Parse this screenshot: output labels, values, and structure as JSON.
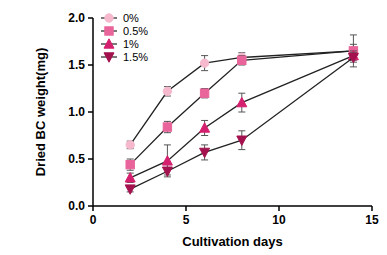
{
  "chart_data": {
    "type": "line",
    "x_label": "Cultivation days",
    "y_label": "Dried BC weight(mg)",
    "x": [
      2,
      4,
      6,
      8,
      14
    ],
    "xlim": [
      0,
      15
    ],
    "xticks": [
      0,
      5,
      10,
      15
    ],
    "ylim": [
      0,
      2
    ],
    "yticks": [
      {
        "value": 0,
        "label": "0.0"
      },
      0.5,
      {
        "value": 1,
        "label": "1.0"
      },
      1.5,
      {
        "value": 2,
        "label": "2.0"
      }
    ],
    "legend": "upper left",
    "series": [
      {
        "name": "0%",
        "color": "#f5b8cc",
        "marker": "circle",
        "values": [
          0.65,
          1.22,
          1.52,
          1.58,
          1.65
        ],
        "errors": [
          0.04,
          0.05,
          0.08,
          0.05,
          0.17
        ]
      },
      {
        "name": "0.5%",
        "color": "#e8649a",
        "marker": "square",
        "values": [
          0.44,
          0.84,
          1.2,
          1.55,
          1.65
        ],
        "errors": [
          0.06,
          0.06,
          0.05,
          0.05,
          0.07
        ]
      },
      {
        "name": "1%",
        "color": "#d4206e",
        "marker": "triangle",
        "values": [
          0.3,
          0.48,
          0.83,
          1.1,
          1.6
        ],
        "errors": [
          0.05,
          0.17,
          0.08,
          0.1,
          0.05
        ]
      },
      {
        "name": "1.5%",
        "color": "#a3124e",
        "marker": "triangle-down",
        "values": [
          0.18,
          0.37,
          0.57,
          0.7,
          1.58
        ],
        "errors": [
          0.03,
          0.04,
          0.08,
          0.1,
          0.05
        ]
      }
    ]
  }
}
